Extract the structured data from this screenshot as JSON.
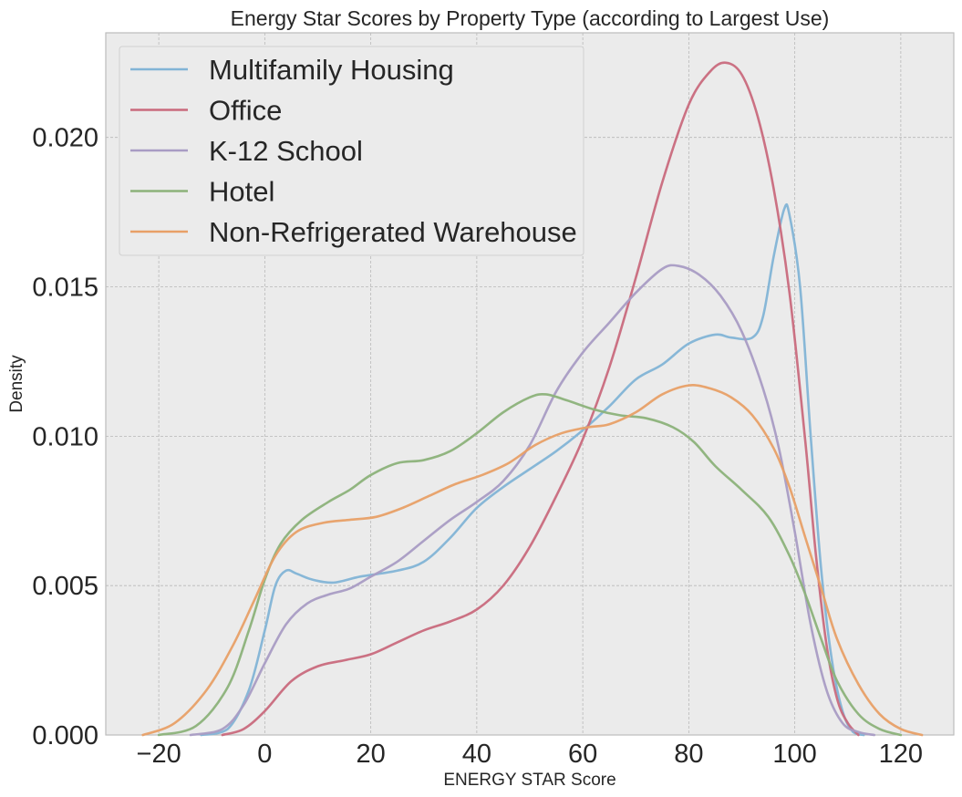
{
  "chart_data": {
    "type": "line",
    "title": "Energy Star Scores by Property Type (according to Largest Use)",
    "xlabel": "ENERGY STAR Score",
    "ylabel": "Density",
    "xlim": [
      -30,
      130
    ],
    "ylim": [
      0,
      0.0235
    ],
    "xticks": [
      -20,
      0,
      20,
      40,
      60,
      80,
      100,
      120
    ],
    "yticks": [
      0.0,
      0.005,
      0.01,
      0.015,
      0.02
    ],
    "xtick_labels": [
      "−20",
      "0",
      "20",
      "40",
      "60",
      "80",
      "100",
      "120"
    ],
    "ytick_labels": [
      "0.000",
      "0.005",
      "0.010",
      "0.015",
      "0.020"
    ],
    "grid": true,
    "legend_position": "top-left",
    "series": [
      {
        "name": "Multifamily Housing",
        "color": "#82b4d6",
        "points": [
          [
            -12,
            0
          ],
          [
            -7,
            0.0002
          ],
          [
            -3,
            0.0015
          ],
          [
            0,
            0.0035
          ],
          [
            2,
            0.005
          ],
          [
            4,
            0.0055
          ],
          [
            6,
            0.0054
          ],
          [
            9,
            0.0052
          ],
          [
            13,
            0.0051
          ],
          [
            18,
            0.0053
          ],
          [
            25,
            0.0055
          ],
          [
            30,
            0.0058
          ],
          [
            35,
            0.0066
          ],
          [
            40,
            0.0076
          ],
          [
            45,
            0.0083
          ],
          [
            50,
            0.0089
          ],
          [
            55,
            0.0095
          ],
          [
            60,
            0.0102
          ],
          [
            65,
            0.011
          ],
          [
            70,
            0.0119
          ],
          [
            75,
            0.0124
          ],
          [
            80,
            0.0131
          ],
          [
            85,
            0.0134
          ],
          [
            88,
            0.0133
          ],
          [
            92,
            0.0133
          ],
          [
            94,
            0.014
          ],
          [
            96,
            0.016
          ],
          [
            98,
            0.0176
          ],
          [
            99,
            0.0174
          ],
          [
            101,
            0.015
          ],
          [
            103,
            0.01
          ],
          [
            105,
            0.0055
          ],
          [
            107,
            0.0025
          ],
          [
            109,
            0.0008
          ],
          [
            111,
            0.0001
          ],
          [
            113,
            0
          ]
        ]
      },
      {
        "name": "Office",
        "color": "#c96a7d",
        "points": [
          [
            -8,
            0
          ],
          [
            -4,
            0.0002
          ],
          [
            0,
            0.0008
          ],
          [
            5,
            0.0018
          ],
          [
            10,
            0.0023
          ],
          [
            15,
            0.0025
          ],
          [
            20,
            0.0027
          ],
          [
            25,
            0.0031
          ],
          [
            30,
            0.0035
          ],
          [
            35,
            0.0038
          ],
          [
            40,
            0.0042
          ],
          [
            45,
            0.005
          ],
          [
            50,
            0.0063
          ],
          [
            55,
            0.008
          ],
          [
            60,
            0.0099
          ],
          [
            65,
            0.0123
          ],
          [
            70,
            0.0153
          ],
          [
            75,
            0.0185
          ],
          [
            80,
            0.0211
          ],
          [
            84,
            0.0222
          ],
          [
            87,
            0.0225
          ],
          [
            90,
            0.0221
          ],
          [
            93,
            0.0207
          ],
          [
            96,
            0.0183
          ],
          [
            99,
            0.0148
          ],
          [
            102,
            0.0098
          ],
          [
            104,
            0.006
          ],
          [
            106,
            0.003
          ],
          [
            108,
            0.0012
          ],
          [
            110,
            0.0004
          ],
          [
            112,
            0
          ]
        ]
      },
      {
        "name": "K-12 School",
        "color": "#a99cc4",
        "points": [
          [
            -14,
            0
          ],
          [
            -8,
            0.0002
          ],
          [
            -4,
            0.001
          ],
          [
            0,
            0.0024
          ],
          [
            4,
            0.0037
          ],
          [
            8,
            0.0044
          ],
          [
            12,
            0.0047
          ],
          [
            16,
            0.0049
          ],
          [
            20,
            0.0053
          ],
          [
            25,
            0.0058
          ],
          [
            30,
            0.0065
          ],
          [
            35,
            0.0072
          ],
          [
            40,
            0.0078
          ],
          [
            45,
            0.0085
          ],
          [
            50,
            0.0097
          ],
          [
            55,
            0.0115
          ],
          [
            60,
            0.0128
          ],
          [
            65,
            0.0138
          ],
          [
            70,
            0.0148
          ],
          [
            75,
            0.0156
          ],
          [
            78,
            0.0157
          ],
          [
            82,
            0.0154
          ],
          [
            86,
            0.0147
          ],
          [
            90,
            0.0135
          ],
          [
            94,
            0.0116
          ],
          [
            97,
            0.0096
          ],
          [
            100,
            0.0068
          ],
          [
            103,
            0.0037
          ],
          [
            106,
            0.0015
          ],
          [
            109,
            0.0004
          ],
          [
            112,
            0.0001
          ],
          [
            115,
            0
          ]
        ]
      },
      {
        "name": "Hotel",
        "color": "#8cb27a",
        "points": [
          [
            -20,
            0
          ],
          [
            -13,
            0.0003
          ],
          [
            -7,
            0.0016
          ],
          [
            -3,
            0.0035
          ],
          [
            0,
            0.0052
          ],
          [
            3,
            0.0064
          ],
          [
            7,
            0.0072
          ],
          [
            12,
            0.0078
          ],
          [
            16,
            0.0082
          ],
          [
            20,
            0.0087
          ],
          [
            25,
            0.0091
          ],
          [
            30,
            0.0092
          ],
          [
            35,
            0.0095
          ],
          [
            40,
            0.0101
          ],
          [
            45,
            0.0108
          ],
          [
            50,
            0.0113
          ],
          [
            53,
            0.0114
          ],
          [
            57,
            0.0112
          ],
          [
            62,
            0.0109
          ],
          [
            67,
            0.0107
          ],
          [
            72,
            0.0106
          ],
          [
            77,
            0.0103
          ],
          [
            81,
            0.0098
          ],
          [
            85,
            0.009
          ],
          [
            90,
            0.0082
          ],
          [
            95,
            0.0073
          ],
          [
            99,
            0.006
          ],
          [
            102,
            0.0047
          ],
          [
            105,
            0.0032
          ],
          [
            108,
            0.0018
          ],
          [
            112,
            0.0007
          ],
          [
            116,
            0.0002
          ],
          [
            120,
            0
          ]
        ]
      },
      {
        "name": "Non-Refrigerated Warehouse",
        "color": "#e8a067",
        "points": [
          [
            -23,
            0
          ],
          [
            -17,
            0.0004
          ],
          [
            -11,
            0.0015
          ],
          [
            -6,
            0.003
          ],
          [
            -2,
            0.0045
          ],
          [
            2,
            0.006
          ],
          [
            6,
            0.0068
          ],
          [
            11,
            0.0071
          ],
          [
            16,
            0.0072
          ],
          [
            21,
            0.0073
          ],
          [
            26,
            0.0076
          ],
          [
            31,
            0.008
          ],
          [
            36,
            0.0084
          ],
          [
            41,
            0.0087
          ],
          [
            46,
            0.0091
          ],
          [
            51,
            0.0097
          ],
          [
            56,
            0.0101
          ],
          [
            61,
            0.0103
          ],
          [
            65,
            0.0104
          ],
          [
            70,
            0.0108
          ],
          [
            75,
            0.0114
          ],
          [
            80,
            0.0117
          ],
          [
            84,
            0.0116
          ],
          [
            88,
            0.0113
          ],
          [
            92,
            0.0107
          ],
          [
            96,
            0.0096
          ],
          [
            99,
            0.0083
          ],
          [
            102,
            0.0066
          ],
          [
            105,
            0.0049
          ],
          [
            108,
            0.0032
          ],
          [
            112,
            0.0017
          ],
          [
            116,
            0.0007
          ],
          [
            120,
            0.0002
          ],
          [
            124,
            0
          ]
        ]
      }
    ]
  }
}
